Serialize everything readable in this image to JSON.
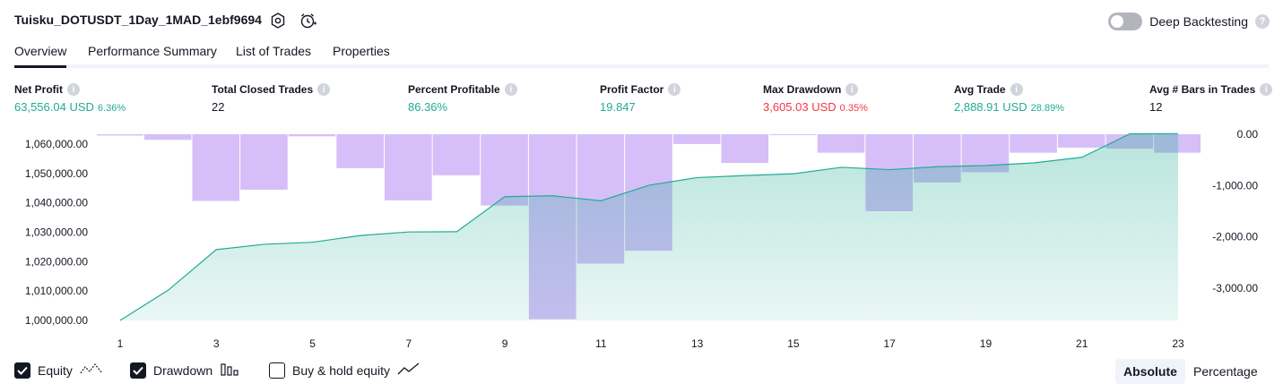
{
  "header": {
    "title": "Tuisku_DOTUSDT_1Day_1MAD_1ebf9694",
    "icons": [
      "settings-icon",
      "alert-clock-icon"
    ],
    "deep_backtesting_label": "Deep Backtesting",
    "deep_backtesting_enabled": false,
    "help_glyph": "?"
  },
  "tabs": [
    {
      "label": "Overview",
      "active": true
    },
    {
      "label": "Performance Summary",
      "active": false
    },
    {
      "label": "List of Trades",
      "active": false
    },
    {
      "label": "Properties",
      "active": false
    }
  ],
  "metrics": [
    {
      "label": "Net Profit",
      "value": "63,556.04 USD",
      "pct": "6.36%",
      "tone": "pos"
    },
    {
      "label": "Total Closed Trades",
      "value": "22",
      "pct": "",
      "tone": "neu"
    },
    {
      "label": "Percent Profitable",
      "value": "86.36%",
      "pct": "",
      "tone": "pos"
    },
    {
      "label": "Profit Factor",
      "value": "19.847",
      "pct": "",
      "tone": "pos"
    },
    {
      "label": "Max Drawdown",
      "value": "3,605.03 USD",
      "pct": "0.35%",
      "tone": "neg"
    },
    {
      "label": "Avg Trade",
      "value": "2,888.91 USD",
      "pct": "28.89%",
      "tone": "pos"
    },
    {
      "label": "Avg # Bars in Trades",
      "value": "12",
      "pct": "",
      "tone": "neu"
    }
  ],
  "metric_info_glyph": "i",
  "chart_data": {
    "type": "area",
    "x": [
      1,
      2,
      3,
      4,
      5,
      6,
      7,
      8,
      9,
      10,
      11,
      12,
      13,
      14,
      15,
      16,
      17,
      18,
      19,
      20,
      21,
      22,
      23
    ],
    "x_tick_labels": [
      "1",
      "3",
      "5",
      "7",
      "9",
      "11",
      "13",
      "15",
      "17",
      "19",
      "21",
      "23"
    ],
    "series": [
      {
        "axis": "left",
        "kind": "area",
        "color": "#22ab94",
        "values": [
          1000000,
          1010300,
          1024100,
          1025900,
          1026600,
          1028900,
          1030100,
          1030200,
          1042100,
          1042400,
          1040700,
          1046000,
          1048600,
          1049300,
          1049900,
          1052100,
          1051300,
          1052300,
          1052700,
          1053600,
          1055500,
          1063500,
          1063556
        ]
      },
      {
        "axis": "right",
        "kind": "bar",
        "color": "#c5a4f5",
        "values": [
          -25,
          -110,
          -1300,
          -1080,
          -40,
          -660,
          -1290,
          -800,
          -1390,
          -3605,
          -2520,
          -2270,
          -190,
          -560,
          -15,
          -360,
          -1500,
          -940,
          -740,
          -360,
          -260,
          -280,
          -360
        ]
      }
    ],
    "left_axis": {
      "ticks": [
        "1,060,000.00",
        "1,050,000.00",
        "1,040,000.00",
        "1,030,000.00",
        "1,020,000.00",
        "1,010,000.00",
        "1,000,000.00"
      ],
      "range": [
        1000000,
        1063556
      ]
    },
    "right_axis": {
      "ticks": [
        "0.00",
        "-1,000.00",
        "-2,000.00",
        "-3,000.00"
      ],
      "range": [
        -3605,
        0
      ]
    }
  },
  "legend": [
    {
      "label": "Equity",
      "checked": true,
      "icon": "equity-line-icon"
    },
    {
      "label": "Drawdown",
      "checked": true,
      "icon": "drawdown-bars-icon"
    },
    {
      "label": "Buy & hold equity",
      "checked": false,
      "icon": "buy-hold-line-icon"
    }
  ],
  "modes": [
    {
      "label": "Absolute",
      "active": true
    },
    {
      "label": "Percentage",
      "active": false
    }
  ]
}
